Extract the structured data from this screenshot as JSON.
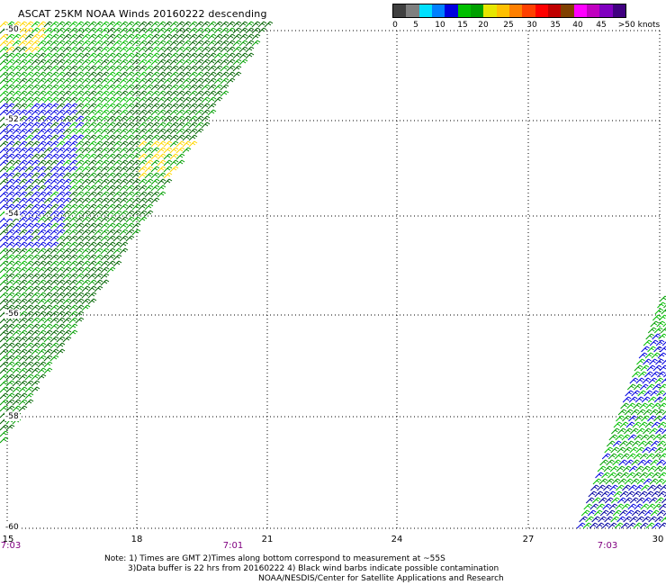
{
  "title": "ASCAT 25KM NOAA Winds 20160222 descending",
  "legend": {
    "unit": ">50 knots",
    "ticks": [
      "0",
      "5",
      "10",
      "15",
      "20",
      "25",
      "30",
      "35",
      "40",
      "45"
    ],
    "colors": [
      "#404040",
      "#7f7f7f",
      "#00e0ff",
      "#0080ff",
      "#0000e0",
      "#00c000",
      "#00a000",
      "#e6e600",
      "#ffc000",
      "#ff8000",
      "#ff4000",
      "#ff0000",
      "#c00000",
      "#804000",
      "#ff00ff",
      "#c000c0",
      "#8000c0",
      "#400080"
    ]
  },
  "lat_labels": [
    "-50",
    "-52",
    "-54",
    "-56",
    "-58",
    "-60"
  ],
  "lon_labels": [
    "15",
    "18",
    "21",
    "24",
    "27",
    "30"
  ],
  "time_labels": [
    "7:03",
    "7:01",
    "7:03"
  ],
  "notes": {
    "line1": "Note: 1) Times are GMT 2)Times along bottom correspond to measurement at ~55S",
    "line2": "3)Data buffer is 22 hrs from 20160222 4) Black wind barbs indicate possible contamination",
    "line3": "NOAA/NESDIS/Center for Satellite Applications and Research"
  },
  "map": {
    "lat_range": [
      -60,
      -50
    ],
    "lon_range": [
      15,
      30
    ],
    "grid": "dotted",
    "swaths": [
      {
        "name": "west-swath",
        "colors": [
          "#006400",
          "#00a000",
          "#00c000",
          "#0000e0",
          "#ffd700"
        ]
      },
      {
        "name": "east-swath",
        "colors": [
          "#00a000",
          "#00c000",
          "#0000e0",
          "#0000a0"
        ]
      }
    ]
  }
}
